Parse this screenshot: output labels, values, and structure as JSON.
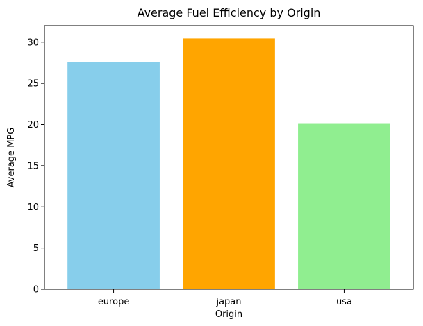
{
  "chart_data": {
    "type": "bar",
    "title": "Average Fuel Efficiency by Origin",
    "xlabel": "Origin",
    "ylabel": "Average MPG",
    "categories": [
      "europe",
      "japan",
      "usa"
    ],
    "values": [
      27.6,
      30.45,
      20.08
    ],
    "colors": [
      "#87ceeb",
      "#ffa500",
      "#90ee90"
    ],
    "ylim": [
      0,
      32
    ],
    "yticks": [
      0,
      5,
      10,
      15,
      20,
      25,
      30
    ],
    "grid": false,
    "legend": "none"
  }
}
